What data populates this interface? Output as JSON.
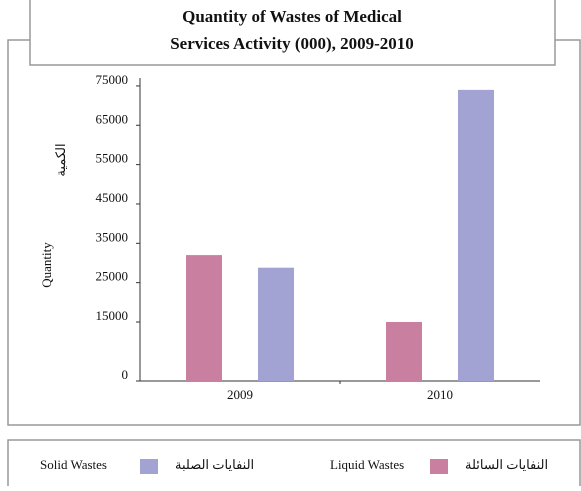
{
  "chart_data": {
    "type": "bar",
    "title": "Quantity of Wastes of Medical Services Activity (000), 2009-2010",
    "title_lines": [
      "Quantity of Wastes of Medical",
      "Services Activity (000), 2009-2010"
    ],
    "y_label": "Quantity",
    "y_label_ar": "الكمية",
    "categories": [
      "2009",
      "2010"
    ],
    "series": [
      {
        "name": "Liquid Wastes",
        "name_ar": "النفايات السائلة",
        "color": "#c97fa0",
        "values": [
          32000,
          15000
        ]
      },
      {
        "name": "Solid Wastes",
        "name_ar": "النفايات الصلبة",
        "color": "#a3a3d3",
        "values": [
          28800,
          74000
        ]
      }
    ],
    "ylim": [
      0,
      76000
    ],
    "yticks": [
      0,
      15000,
      25000,
      35000,
      45000,
      55000,
      65000,
      75000
    ]
  }
}
